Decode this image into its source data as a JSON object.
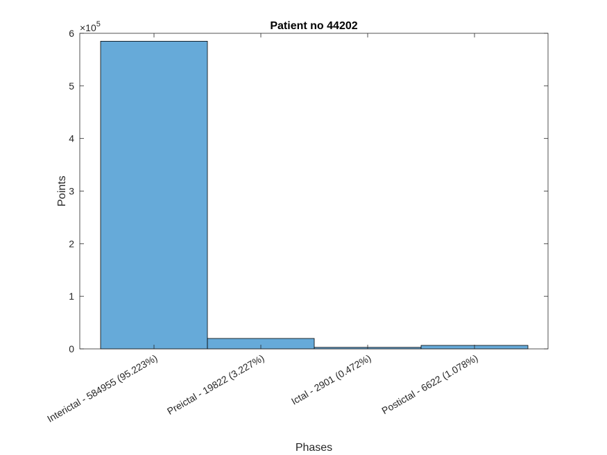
{
  "chart_data": {
    "type": "bar",
    "title": "Patient no 44202",
    "xlabel": "Phases",
    "ylabel": "Points",
    "categories": [
      "Interictal - 584955 (95.223%)",
      "Preictal - 19822 (3.227%)",
      "Ictal - 2901 (0.472%)",
      "Postictal - 6622 (1.078%)"
    ],
    "values": [
      584955,
      19822,
      2901,
      6622
    ],
    "ylim": [
      0,
      600000
    ],
    "y_ticks": [
      0,
      1,
      2,
      3,
      4,
      5,
      6
    ],
    "y_exponent_label": "×10",
    "y_exponent_power": "5",
    "bar_color": "#66aad9",
    "bar_edge_color": "#000000",
    "grid": false,
    "legend": "none"
  }
}
